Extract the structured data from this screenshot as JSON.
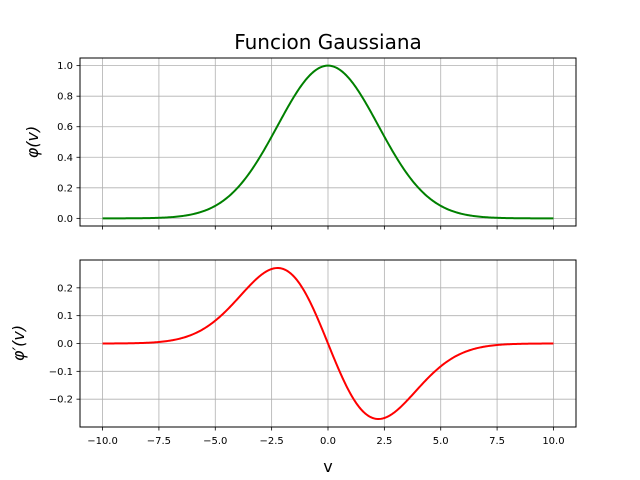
{
  "chart_data": {
    "type": "line",
    "title": "Funcion Gaussiana",
    "xlabel": "v",
    "colors": {
      "line_top": "#008000",
      "line_bottom": "#ff0000",
      "grid": "#b0b0b0"
    },
    "grid": true,
    "x_range_data": [
      -10,
      10
    ],
    "xlim": [
      -11,
      11
    ],
    "x_ticks": [
      -10.0,
      -7.5,
      -5.0,
      -2.5,
      0.0,
      2.5,
      5.0,
      7.5,
      10.0
    ],
    "x_tick_labels": [
      "−10.0",
      "−7.5",
      "−5.0",
      "−2.5",
      "0.0",
      "2.5",
      "5.0",
      "7.5",
      "10.0"
    ],
    "panels": [
      {
        "ylabel": "φ(v)",
        "ylim": [
          -0.05,
          1.05
        ],
        "y_ticks": [
          0.0,
          0.2,
          0.4,
          0.6,
          0.8,
          1.0
        ],
        "y_tick_labels": [
          "0.0",
          "0.2",
          "0.4",
          "0.6",
          "0.8",
          "1.0"
        ],
        "series": [
          {
            "function": "exp(-v^2/10)",
            "color": "#008000",
            "points": [
              [
                -10,
                0.0
              ],
              [
                -7.5,
                0.004
              ],
              [
                -5,
                0.082
              ],
              [
                -2.5,
                0.535
              ],
              [
                0,
                1.0
              ],
              [
                2.5,
                0.535
              ],
              [
                5,
                0.082
              ],
              [
                7.5,
                0.004
              ],
              [
                10,
                0.0
              ]
            ]
          }
        ]
      },
      {
        "ylabel": "φ′(v)",
        "ylim": [
          -0.3,
          0.3
        ],
        "y_ticks": [
          -0.2,
          -0.1,
          0.0,
          0.1,
          0.2
        ],
        "y_tick_labels": [
          "−0.2",
          "−0.1",
          "0.0",
          "0.1",
          "0.2"
        ],
        "series": [
          {
            "function": "-(v/5)*exp(-v^2/10)",
            "color": "#ff0000",
            "points": [
              [
                -10,
                0.0
              ],
              [
                -7.5,
                0.006
              ],
              [
                -5,
                0.082
              ],
              [
                -2.24,
                0.271
              ],
              [
                0,
                0.0
              ],
              [
                2.24,
                -0.271
              ],
              [
                5,
                -0.082
              ],
              [
                7.5,
                -0.006
              ],
              [
                10,
                0.0
              ]
            ]
          }
        ]
      }
    ]
  }
}
